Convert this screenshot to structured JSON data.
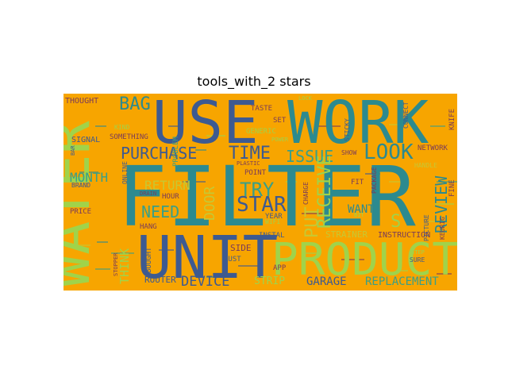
{
  "chart_data": {
    "type": "wordcloud",
    "title": "tools_with_2 stars",
    "background": "#f7a500",
    "palette": [
      "#2c8a8f",
      "#3d5a91",
      "#a0d34a",
      "#7a3b5a",
      "#c7c832",
      "#3a9f87"
    ],
    "words": [
      {
        "text": "FILTER",
        "weight": 1.0,
        "color": "#2c8a8f"
      },
      {
        "text": "USE",
        "weight": 0.62,
        "color": "#3d5a91"
      },
      {
        "text": "WORK",
        "weight": 0.62,
        "color": "#2c8a8f"
      },
      {
        "text": "WATER",
        "weight": 0.58,
        "color": "#a0d34a"
      },
      {
        "text": "UNIT",
        "weight": 0.62,
        "color": "#3d5a91"
      },
      {
        "text": "PRODUCT",
        "weight": 0.5,
        "color": "#a0d34a"
      },
      {
        "text": "TIME",
        "weight": 0.22,
        "color": "#3d5a91"
      },
      {
        "text": "LOOK",
        "weight": 0.27,
        "color": "#2c8a8f"
      },
      {
        "text": "ISSUE",
        "weight": 0.2,
        "color": "#3a9f87"
      },
      {
        "text": "PURCHASE",
        "weight": 0.2,
        "color": "#3d5a91"
      },
      {
        "text": "BAG",
        "weight": 0.22,
        "color": "#2c8a8f"
      },
      {
        "text": "TRY",
        "weight": 0.22,
        "color": "#3a9f87"
      },
      {
        "text": "STAR",
        "weight": 0.24,
        "color": "#3d5a91"
      },
      {
        "text": "NEED",
        "weight": 0.18,
        "color": "#3a9f87"
      },
      {
        "text": "RETURN",
        "weight": 0.14,
        "color": "#c7c832"
      },
      {
        "text": "DEVICE",
        "weight": 0.18,
        "color": "#3d5a91"
      },
      {
        "text": "GARAGE",
        "weight": 0.14,
        "color": "#3d5a91"
      },
      {
        "text": "REPLACEMENT",
        "weight": 0.14,
        "color": "#3a9f87"
      },
      {
        "text": "REVIEW",
        "weight": 0.2,
        "color": "#2c8a8f"
      },
      {
        "text": "MONTH",
        "weight": 0.14,
        "color": "#3a9f87"
      },
      {
        "text": "PUT",
        "weight": 0.2,
        "color": "#c7c832"
      },
      {
        "text": "RECEIVE",
        "weight": 0.2,
        "color": "#a0d34a"
      },
      {
        "text": "DOOR",
        "weight": 0.18,
        "color": "#c7c832"
      },
      {
        "text": "THINK",
        "weight": 0.14,
        "color": "#a0d34a"
      },
      {
        "text": "WANT",
        "weight": 0.12,
        "color": "#2c8a8f"
      },
      {
        "text": "STRAINER",
        "weight": 0.09,
        "color": "#c7c832"
      },
      {
        "text": "INSTRUCTION",
        "weight": 0.08,
        "color": "#7a3b5a"
      },
      {
        "text": "SIDE",
        "weight": 0.09,
        "color": "#7a3b5a"
      },
      {
        "text": "NETWORK",
        "weight": 0.07,
        "color": "#7a3b5a"
      },
      {
        "text": "ROUTER",
        "weight": 0.09,
        "color": "#3d5a91"
      },
      {
        "text": "THOUGHT",
        "weight": 0.08,
        "color": "#7a3b5a"
      },
      {
        "text": "SIGNAL",
        "weight": 0.08,
        "color": "#3d5a91"
      },
      {
        "text": "SOMETHING",
        "weight": 0.08,
        "color": "#7a3b5a"
      },
      {
        "text": "BRAND",
        "weight": 0.07,
        "color": "#3d5a91"
      },
      {
        "text": "PRICE",
        "weight": 0.07,
        "color": "#7a3b5a"
      },
      {
        "text": "HANG",
        "weight": 0.07,
        "color": "#7a3b5a"
      },
      {
        "text": "HOUR",
        "weight": 0.07,
        "color": "#7a3b5a"
      },
      {
        "text": "TASTE",
        "weight": 0.07,
        "color": "#7a3b5a"
      },
      {
        "text": "SET",
        "weight": 0.07,
        "color": "#7a3b5a"
      },
      {
        "text": "POINT",
        "weight": 0.07,
        "color": "#7a3b5a"
      },
      {
        "text": "YEAR",
        "weight": 0.07,
        "color": "#3d5a91"
      },
      {
        "text": "INSTAL",
        "weight": 0.07,
        "color": "#3d5a91"
      },
      {
        "text": "RUST",
        "weight": 0.07,
        "color": "#3d5a91"
      },
      {
        "text": "FIT",
        "weight": 0.07,
        "color": "#7a3b5a"
      },
      {
        "text": "GENERIC",
        "weight": 0.07,
        "color": "#a0d34a"
      },
      {
        "text": "HANDLE",
        "weight": 0.06,
        "color": "#c7c832"
      },
      {
        "text": "SURE",
        "weight": 0.06,
        "color": "#3d5a91"
      },
      {
        "text": "APP",
        "weight": 0.06,
        "color": "#7a3b5a"
      },
      {
        "text": "STRIP",
        "weight": 0.08,
        "color": "#a0d34a"
      },
      {
        "text": "KNIFE",
        "weight": 0.07,
        "color": "#7a3b5a"
      },
      {
        "text": "FINE",
        "weight": 0.06,
        "color": "#7a3b5a"
      },
      {
        "text": "S",
        "weight": 0.2,
        "color": "#a0d34a"
      },
      {
        "text": "KEURIG",
        "weight": 0.05,
        "color": "#7a3b5a"
      },
      {
        "text": "BOUGHT",
        "weight": 0.06,
        "color": "#3d5a91"
      },
      {
        "text": "PROBLEM",
        "weight": 0.06,
        "color": "#3a9f87"
      },
      {
        "text": "CONNECT",
        "weight": 0.06,
        "color": "#3d5a91"
      },
      {
        "text": "STICKY",
        "weight": 0.05,
        "color": "#3d5a91"
      },
      {
        "text": "SHOW",
        "weight": 0.05,
        "color": "#7a3b5a"
      },
      {
        "text": "PACKAGE",
        "weight": 0.05,
        "color": "#7a3b5a"
      },
      {
        "text": "CHARGE",
        "weight": 0.05,
        "color": "#7a3b5a"
      },
      {
        "text": "PICTURE",
        "weight": 0.05,
        "color": "#3d5a91"
      },
      {
        "text": "ONLINE",
        "weight": 0.05,
        "color": "#3d5a91"
      },
      {
        "text": "PLASTIC",
        "weight": 0.04,
        "color": "#7a3b5a"
      },
      {
        "text": "WIFI",
        "weight": 0.05,
        "color": "#a0d34a"
      },
      {
        "text": "KIND",
        "weight": 0.05,
        "color": "#a0d34a"
      },
      {
        "text": "BIT",
        "weight": 0.05,
        "color": "#a0d34a"
      },
      {
        "text": "STOPPER",
        "weight": 0.05,
        "color": "#7a3b5a"
      },
      {
        "text": "BAR",
        "weight": 0.05,
        "color": "#3d5a91"
      },
      {
        "text": "DRAIN",
        "weight": 0.05,
        "color": "#7a3b5a"
      },
      {
        "text": "STEP",
        "weight": 0.05,
        "color": "#a0d34a"
      },
      {
        "text": "POWER",
        "weight": 0.04,
        "color": "#a0d34a"
      },
      {
        "text": "LOCK",
        "weight": 0.04,
        "color": "#a0d34a"
      }
    ]
  }
}
